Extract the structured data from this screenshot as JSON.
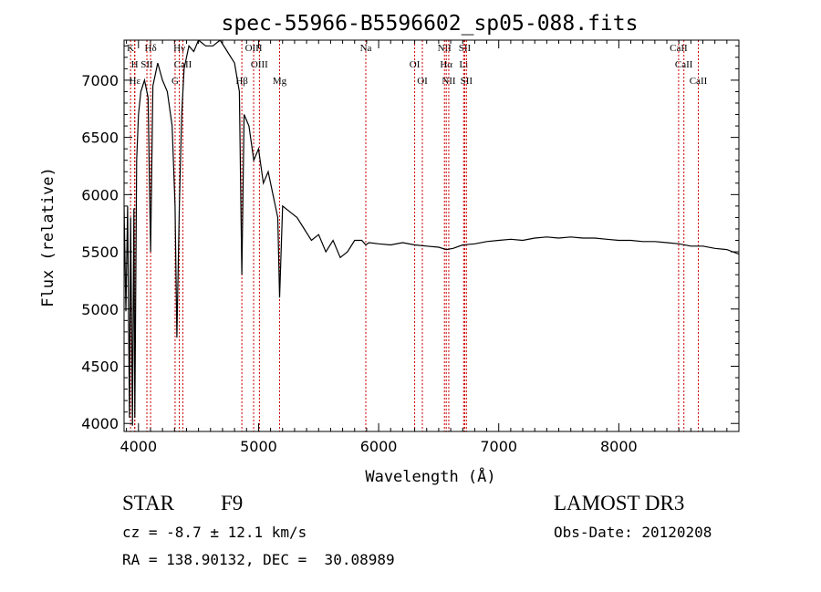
{
  "chart_data": {
    "type": "line",
    "title": "spec-55966-B5596602_sp05-088.fits",
    "xlabel": "Wavelength (Å)",
    "ylabel": "Flux (relative)",
    "xlim": [
      3880,
      9000
    ],
    "ylim": [
      3930,
      7350
    ],
    "xticks": [
      4000,
      5000,
      6000,
      7000,
      8000
    ],
    "yticks": [
      4000,
      4500,
      5000,
      5500,
      6000,
      6500,
      7000
    ],
    "grid": false,
    "line_color": "#cc0000",
    "series": [
      {
        "name": "flux",
        "x": [
          3880,
          3895,
          3910,
          3925,
          3935,
          3950,
          3962,
          3970,
          3985,
          4000,
          4020,
          4050,
          4080,
          4101,
          4120,
          4160,
          4200,
          4240,
          4280,
          4305,
          4320,
          4340,
          4360,
          4380,
          4420,
          4460,
          4500,
          4560,
          4620,
          4680,
          4740,
          4800,
          4840,
          4861,
          4880,
          4920,
          4960,
          5000,
          5040,
          5080,
          5120,
          5160,
          5175,
          5200,
          5260,
          5320,
          5380,
          5440,
          5500,
          5560,
          5620,
          5680,
          5740,
          5800,
          5860,
          5893,
          5920,
          6000,
          6100,
          6200,
          6300,
          6400,
          6500,
          6563,
          6620,
          6700,
          6800,
          6900,
          7000,
          7100,
          7200,
          7300,
          7400,
          7500,
          7600,
          7700,
          7800,
          7900,
          8000,
          8100,
          8200,
          8300,
          8400,
          8500,
          8600,
          8700,
          8800,
          8900,
          9000
        ],
        "y": [
          5900,
          4980,
          5900,
          4050,
          5800,
          3980,
          5880,
          4050,
          6300,
          6700,
          6900,
          7000,
          6850,
          5500,
          6950,
          7150,
          7000,
          6900,
          6600,
          5900,
          4750,
          5900,
          6700,
          7100,
          7300,
          7250,
          7350,
          7300,
          7300,
          7350,
          7250,
          7150,
          6900,
          5300,
          6700,
          6600,
          6300,
          6400,
          6100,
          6200,
          6000,
          5800,
          5100,
          5900,
          5850,
          5800,
          5700,
          5600,
          5650,
          5500,
          5600,
          5450,
          5500,
          5600,
          5600,
          5560,
          5580,
          5570,
          5560,
          5580,
          5560,
          5550,
          5540,
          5520,
          5530,
          5560,
          5570,
          5590,
          5600,
          5610,
          5600,
          5620,
          5630,
          5620,
          5630,
          5620,
          5620,
          5610,
          5600,
          5600,
          5590,
          5590,
          5580,
          5570,
          5550,
          5550,
          5530,
          5520,
          5480
        ]
      }
    ],
    "lines": [
      {
        "label": "K",
        "wave": 3934
      },
      {
        "label": "H",
        "wave": 3968
      },
      {
        "label": "Hε",
        "wave": 3970
      },
      {
        "label": "Hδ",
        "wave": 4101
      },
      {
        "label": "SII",
        "wave": 4070
      },
      {
        "label": "G",
        "wave": 4305
      },
      {
        "label": "Hγ",
        "wave": 4340
      },
      {
        "label": "CaII",
        "wave": 4370
      },
      {
        "label": "Hβ",
        "wave": 4861
      },
      {
        "label": "OIII",
        "wave": 4959
      },
      {
        "label": "OIII",
        "wave": 5007
      },
      {
        "label": "Mg",
        "wave": 5175
      },
      {
        "label": "Na",
        "wave": 5893
      },
      {
        "label": "OI",
        "wave": 6300
      },
      {
        "label": "OI",
        "wave": 6364
      },
      {
        "label": "NII",
        "wave": 6548
      },
      {
        "label": "Hα",
        "wave": 6563
      },
      {
        "label": "NII",
        "wave": 6584
      },
      {
        "label": "SII",
        "wave": 6717
      },
      {
        "label": "Li",
        "wave": 6708
      },
      {
        "label": "SII",
        "wave": 6731
      },
      {
        "label": "CaII",
        "wave": 8498
      },
      {
        "label": "CaII",
        "wave": 8542
      },
      {
        "label": "CaII",
        "wave": 8662
      }
    ]
  },
  "info": {
    "object_type": "STAR",
    "subclass": "F9",
    "survey": "LAMOST DR3",
    "cz": "cz = -8.7 ± 12.1 km/s",
    "obs_date": "Obs-Date: 20120208",
    "coords": "RA = 138.90132, DEC =  30.08989"
  }
}
